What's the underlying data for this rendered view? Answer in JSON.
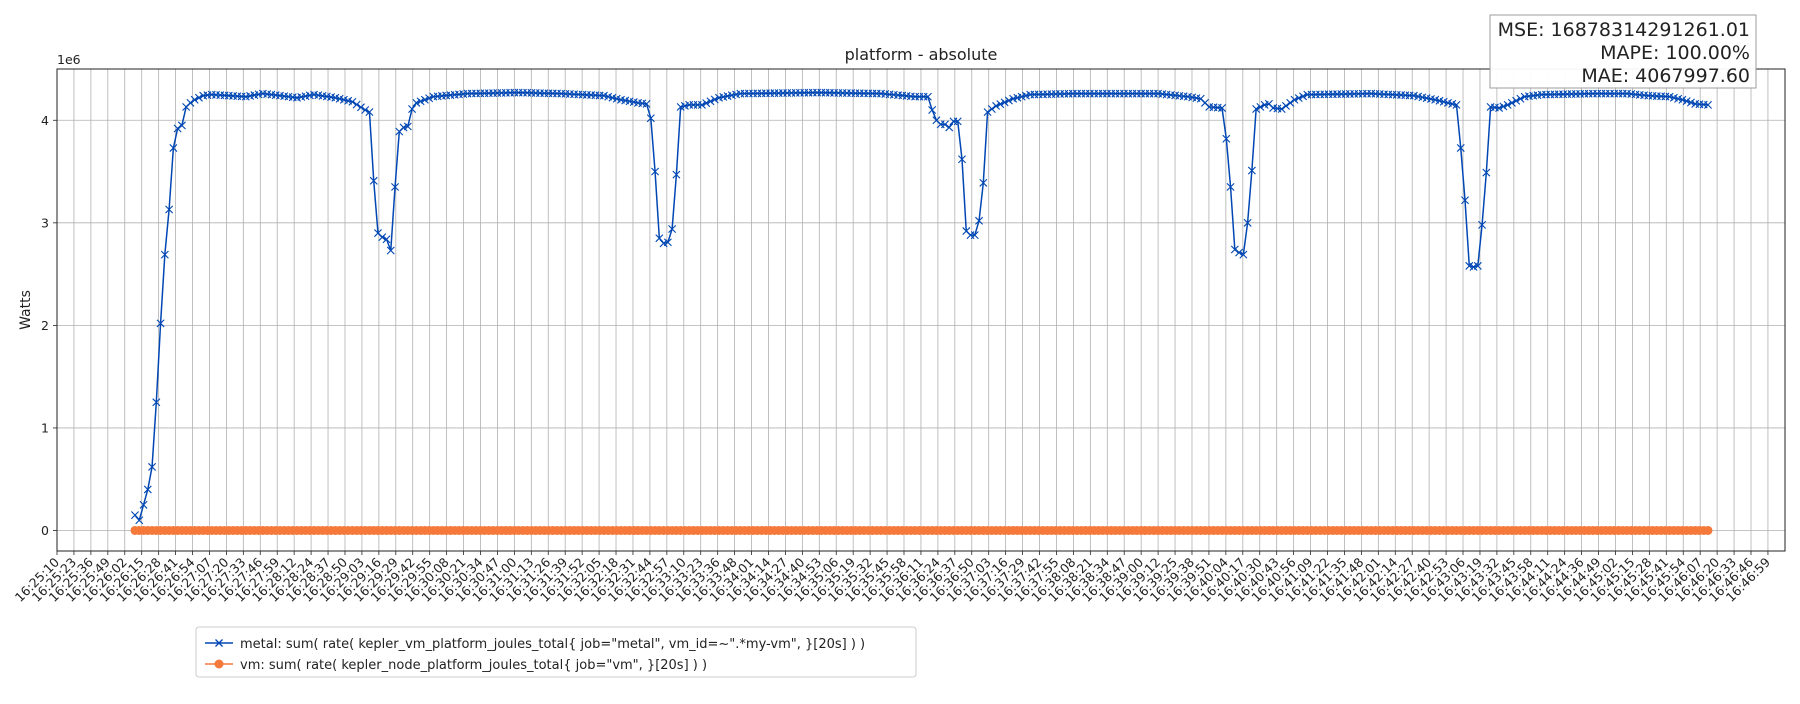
{
  "chart_data": {
    "type": "line",
    "title": "platform - absolute",
    "xlabel": "",
    "ylabel": "Watts",
    "y_scale_note": "1e6",
    "ylim": [
      -200000,
      4500000
    ],
    "y_ticks": [
      0,
      1000000,
      2000000,
      3000000,
      4000000
    ],
    "y_tick_labels": [
      "0",
      "1",
      "2",
      "3",
      "4"
    ],
    "grid": true,
    "legend_position": "bottom-left",
    "x_tick_labels": [
      "16:25:10",
      "16:25:23",
      "16:25:36",
      "16:25:49",
      "16:26:02",
      "16:26:15",
      "16:26:28",
      "16:26:41",
      "16:26:54",
      "16:27:07",
      "16:27:20",
      "16:27:33",
      "16:27:46",
      "16:27:59",
      "16:28:12",
      "16:28:24",
      "16:28:37",
      "16:28:50",
      "16:29:03",
      "16:29:16",
      "16:29:29",
      "16:29:42",
      "16:29:55",
      "16:30:08",
      "16:30:21",
      "16:30:34",
      "16:30:47",
      "16:31:00",
      "16:31:13",
      "16:31:26",
      "16:31:39",
      "16:31:52",
      "16:32:05",
      "16:32:18",
      "16:32:31",
      "16:32:44",
      "16:32:57",
      "16:33:10",
      "16:33:23",
      "16:33:36",
      "16:33:48",
      "16:34:01",
      "16:34:14",
      "16:34:27",
      "16:34:40",
      "16:34:53",
      "16:35:06",
      "16:35:19",
      "16:35:32",
      "16:35:45",
      "16:35:58",
      "16:36:11",
      "16:36:24",
      "16:36:37",
      "16:36:50",
      "16:37:03",
      "16:37:16",
      "16:37:29",
      "16:37:42",
      "16:37:55",
      "16:38:08",
      "16:38:21",
      "16:38:34",
      "16:38:47",
      "16:39:00",
      "16:39:12",
      "16:39:25",
      "16:39:38",
      "16:39:51",
      "16:40:04",
      "16:40:17",
      "16:40:30",
      "16:40:43",
      "16:40:56",
      "16:41:09",
      "16:41:22",
      "16:41:35",
      "16:41:48",
      "16:42:01",
      "16:42:14",
      "16:42:27",
      "16:42:40",
      "16:42:53",
      "16:43:06",
      "16:43:19",
      "16:43:32",
      "16:43:45",
      "16:43:58",
      "16:44:11",
      "16:44:24",
      "16:44:36",
      "16:44:49",
      "16:45:02",
      "16:45:15",
      "16:45:28",
      "16:45:41",
      "16:45:54",
      "16:46:07",
      "16:46:20",
      "16:46:33",
      "16:46:46",
      "16:46:59"
    ],
    "series": [
      {
        "name": "metal: sum( rate( kepler_vm_platform_joules_total{ job=\"metal\", vm_id=~\".*my-vm\", }[20s] ) )",
        "color": "#0047b3",
        "marker": "x",
        "keyframes": [
          [
            0,
            150000
          ],
          [
            1,
            100000
          ],
          [
            2,
            250000
          ],
          [
            3,
            400000
          ],
          [
            4,
            620000
          ],
          [
            5,
            1250000
          ],
          [
            6,
            2020000
          ],
          [
            7,
            2690000
          ],
          [
            8,
            3130000
          ],
          [
            9,
            3730000
          ],
          [
            10,
            3920000
          ],
          [
            11,
            3950000
          ],
          [
            12,
            4130000
          ],
          [
            13,
            4170000
          ],
          [
            14,
            4200000
          ],
          [
            16,
            4240000
          ],
          [
            18,
            4250000
          ],
          [
            26,
            4230000
          ],
          [
            30,
            4260000
          ],
          [
            38,
            4220000
          ],
          [
            42,
            4250000
          ],
          [
            47,
            4220000
          ],
          [
            51,
            4180000
          ],
          [
            54,
            4100000
          ],
          [
            55,
            4080000
          ],
          [
            56,
            3410000
          ],
          [
            57,
            2900000
          ],
          [
            58,
            2860000
          ],
          [
            59,
            2840000
          ],
          [
            60,
            2730000
          ],
          [
            61,
            3350000
          ],
          [
            62,
            3890000
          ],
          [
            63,
            3930000
          ],
          [
            64,
            3940000
          ],
          [
            65,
            4110000
          ],
          [
            66,
            4170000
          ],
          [
            70,
            4230000
          ],
          [
            78,
            4260000
          ],
          [
            90,
            4270000
          ],
          [
            100,
            4260000
          ],
          [
            110,
            4240000
          ],
          [
            114,
            4200000
          ],
          [
            118,
            4170000
          ],
          [
            120,
            4160000
          ],
          [
            121,
            4020000
          ],
          [
            122,
            3500000
          ],
          [
            123,
            2850000
          ],
          [
            124,
            2800000
          ],
          [
            125,
            2810000
          ],
          [
            126,
            2940000
          ],
          [
            127,
            3470000
          ],
          [
            128,
            4130000
          ],
          [
            130,
            4150000
          ],
          [
            133,
            4150000
          ],
          [
            137,
            4220000
          ],
          [
            142,
            4260000
          ],
          [
            160,
            4270000
          ],
          [
            175,
            4260000
          ],
          [
            183,
            4230000
          ],
          [
            186,
            4230000
          ],
          [
            187,
            4100000
          ],
          [
            188,
            4000000
          ],
          [
            189,
            3960000
          ],
          [
            190,
            3960000
          ],
          [
            191,
            3930000
          ],
          [
            192,
            3990000
          ],
          [
            193,
            3990000
          ],
          [
            194,
            3620000
          ],
          [
            195,
            2920000
          ],
          [
            196,
            2880000
          ],
          [
            197,
            2880000
          ],
          [
            198,
            3020000
          ],
          [
            199,
            3390000
          ],
          [
            200,
            4080000
          ],
          [
            202,
            4140000
          ],
          [
            206,
            4210000
          ],
          [
            210,
            4250000
          ],
          [
            220,
            4260000
          ],
          [
            240,
            4260000
          ],
          [
            247,
            4230000
          ],
          [
            250,
            4210000
          ],
          [
            252,
            4130000
          ],
          [
            255,
            4120000
          ],
          [
            256,
            3820000
          ],
          [
            257,
            3350000
          ],
          [
            258,
            2740000
          ],
          [
            259,
            2710000
          ],
          [
            260,
            2690000
          ],
          [
            261,
            3000000
          ],
          [
            262,
            3510000
          ],
          [
            263,
            4110000
          ],
          [
            265,
            4150000
          ],
          [
            266,
            4160000
          ],
          [
            267,
            4120000
          ],
          [
            269,
            4110000
          ],
          [
            272,
            4200000
          ],
          [
            275,
            4250000
          ],
          [
            290,
            4260000
          ],
          [
            300,
            4240000
          ],
          [
            305,
            4200000
          ],
          [
            310,
            4150000
          ],
          [
            311,
            3730000
          ],
          [
            312,
            3220000
          ],
          [
            313,
            2580000
          ],
          [
            314,
            2570000
          ],
          [
            315,
            2580000
          ],
          [
            316,
            2980000
          ],
          [
            317,
            3490000
          ],
          [
            318,
            4130000
          ],
          [
            320,
            4120000
          ],
          [
            322,
            4150000
          ],
          [
            326,
            4230000
          ],
          [
            330,
            4250000
          ],
          [
            342,
            4260000
          ],
          [
            350,
            4260000
          ],
          [
            355,
            4240000
          ],
          [
            360,
            4230000
          ],
          [
            363,
            4200000
          ],
          [
            366,
            4160000
          ],
          [
            369,
            4150000
          ]
        ]
      },
      {
        "name": "vm: sum( rate( kepler_node_platform_joules_total{ job=\"vm\", }[20s] ) )",
        "color": "#f5793a",
        "marker": "o",
        "keyframes": [
          [
            0,
            0
          ],
          [
            369,
            0
          ]
        ]
      }
    ],
    "metrics_box": {
      "mse": "MSE: 16878314291261.01",
      "mape": "MAPE: 100.00%",
      "mae": "MAE: 4067997.60"
    }
  }
}
